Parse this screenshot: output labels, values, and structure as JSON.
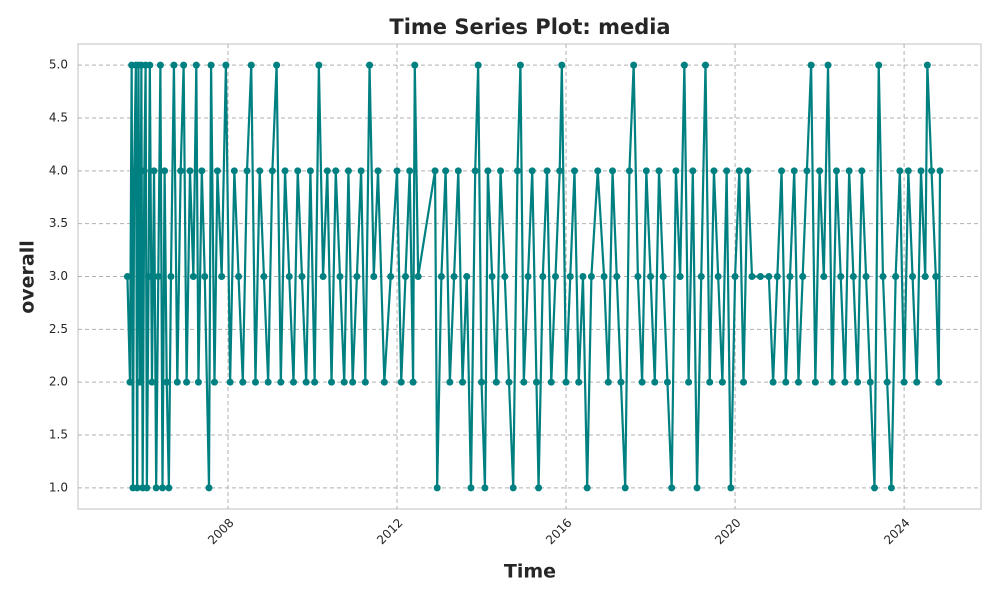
{
  "chart_data": {
    "type": "line",
    "title": "Time Series Plot: media",
    "x_label": "Time",
    "y_label": "overall",
    "x": [
      2005.62,
      2005.68,
      2005.72,
      2005.75,
      2005.78,
      2005.82,
      2005.85,
      2005.88,
      2005.92,
      2005.95,
      2005.98,
      2006.02,
      2006.05,
      2006.08,
      2006.12,
      2006.15,
      2006.2,
      2006.25,
      2006.3,
      2006.35,
      2006.4,
      2006.45,
      2006.5,
      2006.55,
      2006.6,
      2006.65,
      2006.72,
      2006.8,
      2006.88,
      2006.95,
      2007.02,
      2007.1,
      2007.18,
      2007.25,
      2007.3,
      2007.38,
      2007.45,
      2007.55,
      2007.6,
      2007.68,
      2007.75,
      2007.85,
      2007.95,
      2008.05,
      2008.15,
      2008.25,
      2008.35,
      2008.45,
      2008.55,
      2008.65,
      2008.75,
      2008.85,
      2008.95,
      2009.05,
      2009.15,
      2009.25,
      2009.35,
      2009.45,
      2009.55,
      2009.65,
      2009.75,
      2009.85,
      2009.95,
      2010.05,
      2010.15,
      2010.25,
      2010.35,
      2010.45,
      2010.55,
      2010.65,
      2010.75,
      2010.85,
      2010.95,
      2011.05,
      2011.15,
      2011.25,
      2011.35,
      2011.45,
      2011.55,
      2011.7,
      2011.85,
      2012.0,
      2012.1,
      2012.2,
      2012.3,
      2012.38,
      2012.42,
      2012.5,
      2012.9,
      2012.95,
      2013.05,
      2013.15,
      2013.25,
      2013.35,
      2013.45,
      2013.55,
      2013.65,
      2013.75,
      2013.85,
      2013.92,
      2014.0,
      2014.08,
      2014.15,
      2014.25,
      2014.35,
      2014.45,
      2014.55,
      2014.65,
      2014.75,
      2014.85,
      2014.92,
      2015.0,
      2015.1,
      2015.2,
      2015.3,
      2015.35,
      2015.45,
      2015.55,
      2015.65,
      2015.75,
      2015.85,
      2015.9,
      2016.0,
      2016.1,
      2016.2,
      2016.3,
      2016.4,
      2016.5,
      2016.6,
      2016.75,
      2016.9,
      2017.0,
      2017.1,
      2017.2,
      2017.3,
      2017.4,
      2017.5,
      2017.6,
      2017.7,
      2017.8,
      2017.9,
      2018.0,
      2018.1,
      2018.2,
      2018.3,
      2018.4,
      2018.5,
      2018.6,
      2018.7,
      2018.8,
      2018.9,
      2019.0,
      2019.1,
      2019.2,
      2019.3,
      2019.4,
      2019.5,
      2019.6,
      2019.7,
      2019.8,
      2019.9,
      2020.0,
      2020.1,
      2020.2,
      2020.3,
      2020.4,
      2020.6,
      2020.8,
      2020.9,
      2021.0,
      2021.1,
      2021.2,
      2021.3,
      2021.4,
      2021.5,
      2021.6,
      2021.7,
      2021.8,
      2021.9,
      2022.0,
      2022.1,
      2022.2,
      2022.3,
      2022.4,
      2022.5,
      2022.6,
      2022.7,
      2022.8,
      2022.9,
      2023.0,
      2023.1,
      2023.2,
      2023.3,
      2023.4,
      2023.5,
      2023.6,
      2023.7,
      2023.8,
      2023.9,
      2024.0,
      2024.1,
      2024.2,
      2024.3,
      2024.4,
      2024.5,
      2024.55,
      2024.65,
      2024.75,
      2024.82,
      2024.85
    ],
    "series": [
      {
        "color": "#008080",
        "values": [
          3,
          2,
          5,
          1,
          4,
          5,
          1,
          5,
          2,
          5,
          1,
          4,
          5,
          1,
          3,
          5,
          2,
          4,
          1,
          3,
          5,
          1,
          4,
          2,
          1,
          3,
          5,
          2,
          4,
          5,
          2,
          4,
          3,
          5,
          2,
          4,
          3,
          1,
          5,
          2,
          4,
          3,
          5,
          2,
          4,
          3,
          2,
          4,
          5,
          2,
          4,
          3,
          2,
          4,
          5,
          2,
          4,
          3,
          2,
          4,
          3,
          2,
          4,
          2,
          5,
          3,
          4,
          2,
          4,
          3,
          2,
          4,
          2,
          3,
          4,
          2,
          5,
          3,
          4,
          2,
          3,
          4,
          2,
          3,
          4,
          2,
          5,
          3,
          4,
          1,
          3,
          4,
          2,
          3,
          4,
          2,
          3,
          1,
          4,
          5,
          2,
          1,
          4,
          3,
          2,
          4,
          3,
          2,
          1,
          4,
          5,
          2,
          3,
          4,
          2,
          1,
          3,
          4,
          2,
          3,
          4,
          5,
          2,
          3,
          4,
          2,
          3,
          1,
          3,
          4,
          3,
          2,
          4,
          3,
          2,
          1,
          4,
          5,
          3,
          2,
          4,
          3,
          2,
          4,
          3,
          2,
          1,
          4,
          3,
          5,
          2,
          4,
          1,
          3,
          5,
          2,
          4,
          3,
          2,
          4,
          1,
          3,
          4,
          2,
          4,
          3,
          3,
          3,
          2,
          3,
          4,
          2,
          3,
          4,
          2,
          3,
          4,
          5,
          2,
          4,
          3,
          5,
          2,
          4,
          3,
          2,
          4,
          3,
          2,
          4,
          3,
          2,
          1,
          5,
          3,
          2,
          1,
          3,
          4,
          2,
          4,
          3,
          2,
          4,
          3,
          5,
          4,
          3,
          2,
          4
        ]
      }
    ],
    "xlim": [
      2004.45,
      2025.82
    ],
    "xticks": [
      2008,
      2012,
      2016,
      2020,
      2024
    ],
    "ylim": [
      0.8,
      5.2
    ],
    "yticks": [
      {
        "value": 1,
        "label": "1.0"
      },
      {
        "value": 1.5,
        "label": "1.5"
      },
      {
        "value": 2,
        "label": "2.0"
      },
      {
        "value": 2.5,
        "label": "2.5"
      },
      {
        "value": 3,
        "label": "3.0"
      },
      {
        "value": 3.5,
        "label": "3.5"
      },
      {
        "value": 4,
        "label": "4.0"
      },
      {
        "value": 4.5,
        "label": "4.5"
      },
      {
        "value": 5,
        "label": "5.0"
      }
    ],
    "grid": true
  }
}
